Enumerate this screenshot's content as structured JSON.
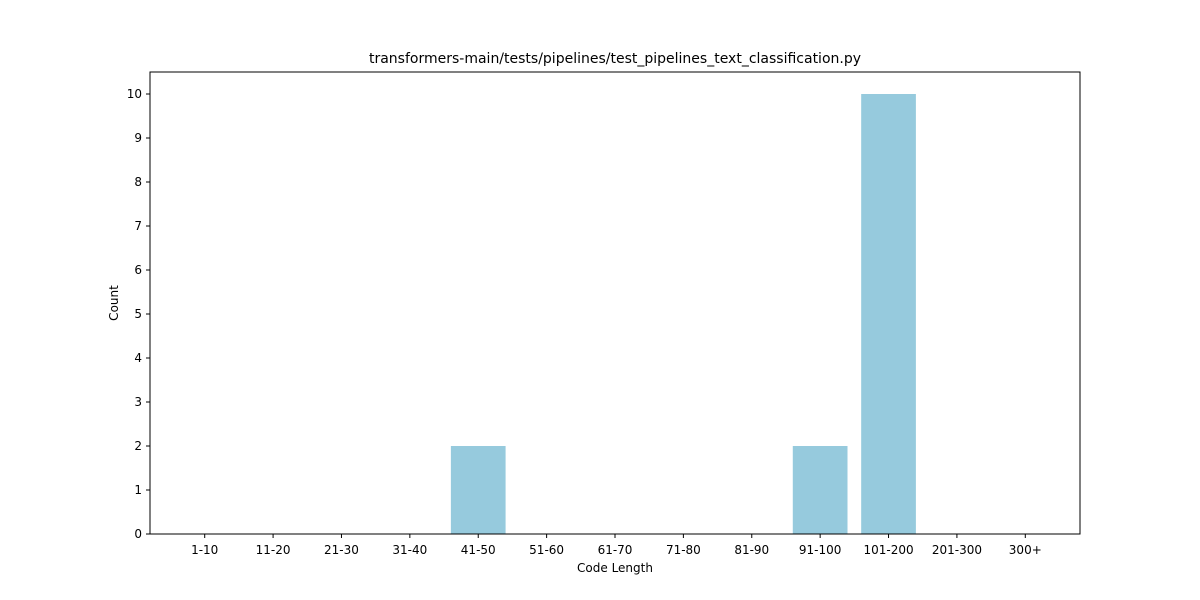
{
  "chart_data": {
    "type": "bar",
    "title": "transformers-main/tests/pipelines/test_pipelines_text_classification.py",
    "xlabel": "Code Length",
    "ylabel": "Count",
    "categories": [
      "1-10",
      "11-20",
      "21-30",
      "31-40",
      "41-50",
      "51-60",
      "61-70",
      "71-80",
      "81-90",
      "91-100",
      "101-200",
      "201-300",
      "300+"
    ],
    "values": [
      0,
      0,
      0,
      0,
      2,
      0,
      0,
      0,
      0,
      2,
      10,
      0,
      0
    ],
    "ylim": [
      0,
      10.5
    ],
    "yticks": [
      0,
      1,
      2,
      3,
      4,
      5,
      6,
      7,
      8,
      9,
      10
    ],
    "grid": false,
    "bar_color": "#96cadd"
  }
}
